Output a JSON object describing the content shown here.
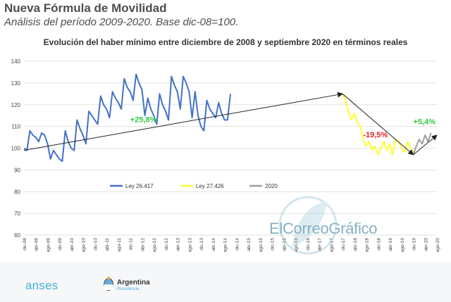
{
  "header": {
    "title": "Nueva Fórmula de Movilidad",
    "subtitle": "Análisis del período 2009-2020. Base dic-08=100."
  },
  "chart_data": {
    "type": "line",
    "title": "Evolución del haber mínimo entre diciembre de 2008 y septiembre 2020 en términos reales",
    "xlabel": "",
    "ylabel": "",
    "ylim": [
      60,
      140
    ],
    "yticks": [
      60,
      70,
      80,
      90,
      100,
      110,
      120,
      130,
      140
    ],
    "grid": true,
    "legend_position": "bottom-inside",
    "x_labels": [
      "dic-08",
      "feb-09",
      "abr-09",
      "jun-09",
      "ago-09",
      "oct-09",
      "dic-09",
      "feb-10",
      "abr-10",
      "jun-10",
      "ago-10",
      "oct-10",
      "dic-10",
      "feb-11",
      "abr-11",
      "jun-11",
      "ago-11",
      "oct-11",
      "dic-11",
      "feb-12",
      "abr-12",
      "jun-12",
      "ago-12",
      "oct-12",
      "dic-12",
      "feb-13",
      "abr-13",
      "jun-13",
      "ago-13",
      "oct-13",
      "dic-13",
      "feb-14",
      "abr-14",
      "jun-14",
      "ago-14",
      "oct-14",
      "dic-14",
      "feb-15",
      "abr-15",
      "jun-15",
      "ago-15",
      "oct-15",
      "dic-15",
      "feb-16",
      "abr-16",
      "jun-16",
      "ago-16",
      "oct-16",
      "dic-16",
      "feb-17",
      "abr-17",
      "jun-17",
      "ago-17",
      "oct-17",
      "dic-17",
      "feb-18",
      "abr-18",
      "jun-18",
      "ago-18",
      "oct-18",
      "dic-18",
      "feb-19",
      "abr-19",
      "jun-19",
      "ago-19",
      "oct-19",
      "dic-19",
      "feb-20",
      "abr-20",
      "jun-20",
      "ago-20"
    ],
    "tick_labels": [
      "dic-08",
      "abr-09",
      "ago-09",
      "dic-09",
      "abr-10",
      "ago-10",
      "dic-10",
      "abr-11",
      "ago-11",
      "dic-11",
      "abr-12",
      "ago-12",
      "dic-12",
      "abr-13",
      "ago-13",
      "dic-13",
      "abr-14",
      "ago-14",
      "dic-14",
      "abr-15",
      "ago-15",
      "dic-15",
      "abr-16",
      "ago-16",
      "dic-16",
      "abr-17",
      "ago-17",
      "dic-17",
      "abr-18",
      "ago-18",
      "dic-18",
      "abr-19",
      "ago-19",
      "dic-19",
      "abr-20",
      "ago-20"
    ],
    "series": [
      {
        "name": "Ley 26.417",
        "color": "#4472c4",
        "start_index": 0,
        "values": [
          100,
          99,
          108,
          106,
          105,
          103,
          107,
          106,
          102,
          95,
          99,
          97,
          95,
          94,
          108,
          103,
          100,
          99,
          113,
          109,
          106,
          102,
          117,
          115,
          113,
          111,
          124,
          120,
          118,
          114,
          126,
          123,
          121,
          118,
          132,
          128,
          126,
          122,
          134,
          130,
          127,
          115,
          123,
          118,
          115,
          111,
          125,
          120,
          117,
          113,
          133,
          129,
          126,
          118,
          133,
          130,
          126,
          114,
          126,
          115,
          110,
          108,
          122,
          118,
          116,
          114,
          121,
          116,
          113,
          113,
          125
        ]
      },
      {
        "name": "Ley 27.426",
        "color": "#ffff33",
        "start_index": 0,
        "values": [
          125,
          122,
          117,
          113,
          116,
          112,
          110,
          104,
          101,
          103,
          99,
          101,
          97,
          100,
          103,
          99,
          102,
          97,
          104,
          103,
          100,
          98,
          103,
          100,
          98
        ]
      },
      {
        "name": "2020",
        "color": "#9e9e9e",
        "start_index": 0,
        "values": [
          97,
          101,
          104,
          102,
          106,
          103,
          107
        ]
      }
    ],
    "trend_lines": [
      {
        "from": [
          "dic-08",
          99
        ],
        "to": [
          "dic-17",
          125
        ]
      },
      {
        "from": [
          "dic-17",
          125
        ],
        "to": [
          "dic-19",
          97
        ]
      },
      {
        "from": [
          "dic-19",
          97
        ],
        "to": [
          "ago-20",
          106
        ]
      }
    ],
    "annotations": [
      {
        "text": "+25,8%",
        "color": "#2ecc40",
        "at": [
          "dic-11",
          112
        ]
      },
      {
        "text": "-19,5%",
        "color": "#e32222",
        "at": [
          "jul-18",
          105
        ]
      },
      {
        "text": "+5,4%",
        "color": "#2ecc40",
        "at": [
          "dic-19",
          111
        ]
      }
    ]
  },
  "footer": {
    "anses": "anses",
    "argentina": "Argentina",
    "presidencia": "Presidencia"
  },
  "watermark": "ElCorreoGráfico",
  "colors": {
    "series_blue": "#4472c4",
    "series_yellow": "#ffff33",
    "series_gray": "#9e9e9e",
    "positive": "#2ecc40",
    "negative": "#e32222"
  }
}
